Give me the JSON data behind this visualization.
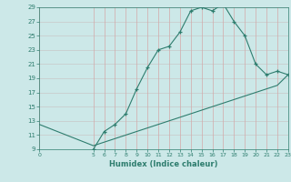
{
  "xlabel": "Humidex (Indice chaleur)",
  "bg_color": "#cce8e8",
  "grid_color_h": "#c8c8c8",
  "grid_color_v": "#d4a8a8",
  "line_color": "#2e7d6e",
  "curve_x": [
    5,
    6,
    7,
    8,
    9,
    10,
    11,
    12,
    13,
    14,
    15,
    16,
    17,
    18,
    19,
    20,
    21,
    22,
    23
  ],
  "curve_y": [
    9,
    11.5,
    12.5,
    14,
    17.5,
    20.5,
    23,
    23.5,
    25.5,
    28.5,
    29,
    28.5,
    29.5,
    27,
    25,
    21,
    19.5,
    20,
    19.5
  ],
  "diag_x": [
    0,
    5,
    6,
    7,
    8,
    9,
    10,
    11,
    12,
    13,
    14,
    15,
    16,
    17,
    18,
    19,
    20,
    21,
    22,
    23
  ],
  "diag_y": [
    12.5,
    9.5,
    10,
    10.5,
    11,
    11.5,
    12,
    12.5,
    13,
    13.5,
    14,
    14.5,
    15,
    15.5,
    16,
    16.5,
    17,
    17.5,
    18,
    19.5
  ],
  "xlim": [
    0,
    23
  ],
  "ylim": [
    9,
    29
  ],
  "xticks": [
    0,
    5,
    6,
    7,
    8,
    9,
    10,
    11,
    12,
    13,
    14,
    15,
    16,
    17,
    18,
    19,
    20,
    21,
    22,
    23
  ],
  "yticks": [
    9,
    11,
    13,
    15,
    17,
    19,
    21,
    23,
    25,
    27,
    29
  ]
}
